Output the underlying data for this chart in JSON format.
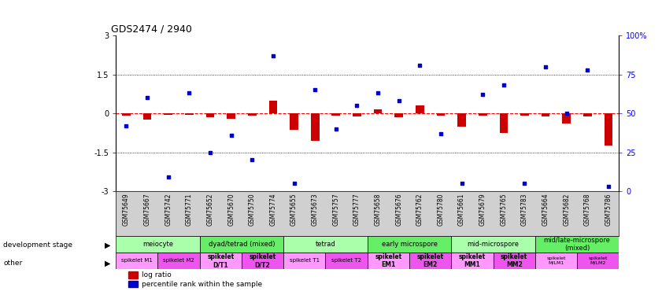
{
  "title": "GDS2474 / 2940",
  "samples": [
    "GSM75649",
    "GSM75667",
    "GSM75742",
    "GSM75771",
    "GSM75652",
    "GSM75670",
    "GSM75750",
    "GSM75774",
    "GSM75655",
    "GSM75673",
    "GSM75757",
    "GSM75777",
    "GSM75658",
    "GSM75676",
    "GSM75762",
    "GSM75780",
    "GSM75661",
    "GSM75679",
    "GSM75765",
    "GSM75783",
    "GSM75664",
    "GSM75682",
    "GSM75768",
    "GSM75786"
  ],
  "log_ratio": [
    -0.1,
    -0.25,
    -0.05,
    -0.05,
    -0.15,
    -0.2,
    -0.1,
    0.5,
    -0.65,
    -1.05,
    -0.1,
    -0.12,
    0.15,
    -0.15,
    0.3,
    -0.1,
    -0.5,
    -0.08,
    -0.75,
    -0.1,
    -0.12,
    -0.4,
    -0.12,
    -1.25
  ],
  "percentile": [
    42,
    60,
    9,
    63,
    25,
    36,
    20,
    87,
    5,
    65,
    40,
    55,
    63,
    58,
    81,
    37,
    5,
    62,
    68,
    5,
    80,
    50,
    78,
    3
  ],
  "ylim_left": [
    -3,
    3
  ],
  "ylim_right": [
    0,
    100
  ],
  "left_ticks": [
    -3,
    -1.5,
    0,
    1.5,
    3
  ],
  "right_ticks": [
    0,
    25,
    50,
    75,
    100
  ],
  "bar_color": "#cc0000",
  "dot_color": "#0000cc",
  "background_color": "#ffffff",
  "label_bg": "#d0d0d0",
  "groups": [
    {
      "label": "meiocyte",
      "start": 0,
      "end": 4,
      "color": "#aaffaa"
    },
    {
      "label": "dyad/tetrad (mixed)",
      "start": 4,
      "end": 8,
      "color": "#66ee66"
    },
    {
      "label": "tetrad",
      "start": 8,
      "end": 12,
      "color": "#aaffaa"
    },
    {
      "label": "early microspore",
      "start": 12,
      "end": 16,
      "color": "#66ee66"
    },
    {
      "label": "mid-microspore",
      "start": 16,
      "end": 20,
      "color": "#aaffaa"
    },
    {
      "label": "mid/late-microspore\n(mixed)",
      "start": 20,
      "end": 24,
      "color": "#66ee66"
    }
  ],
  "subgroups": [
    {
      "label": "spikelet M1",
      "start": 0,
      "end": 2,
      "color": "#ff99ff",
      "fontsize": 5.0,
      "bold": false
    },
    {
      "label": "spikelet M2",
      "start": 2,
      "end": 4,
      "color": "#ee55ee",
      "fontsize": 5.0,
      "bold": false
    },
    {
      "label": "spikelet\nD/T1",
      "start": 4,
      "end": 6,
      "color": "#ff99ff",
      "fontsize": 5.5,
      "bold": true
    },
    {
      "label": "spikelet\nD/T2",
      "start": 6,
      "end": 8,
      "color": "#ee55ee",
      "fontsize": 5.5,
      "bold": true
    },
    {
      "label": "spikelet T1",
      "start": 8,
      "end": 10,
      "color": "#ff99ff",
      "fontsize": 5.0,
      "bold": false
    },
    {
      "label": "spikelet T2",
      "start": 10,
      "end": 12,
      "color": "#ee55ee",
      "fontsize": 5.0,
      "bold": false
    },
    {
      "label": "spikelet\nEM1",
      "start": 12,
      "end": 14,
      "color": "#ff99ff",
      "fontsize": 5.5,
      "bold": true
    },
    {
      "label": "spikelet\nEM2",
      "start": 14,
      "end": 16,
      "color": "#ee55ee",
      "fontsize": 5.5,
      "bold": true
    },
    {
      "label": "spikelet\nMM1",
      "start": 16,
      "end": 18,
      "color": "#ff99ff",
      "fontsize": 5.5,
      "bold": true
    },
    {
      "label": "spikelet\nMM2",
      "start": 18,
      "end": 20,
      "color": "#ee55ee",
      "fontsize": 5.5,
      "bold": true
    },
    {
      "label": "spikelet\nM/LM1",
      "start": 20,
      "end": 22,
      "color": "#ff99ff",
      "fontsize": 4.5,
      "bold": false
    },
    {
      "label": "spikelet\nM/LM2",
      "start": 22,
      "end": 24,
      "color": "#ee55ee",
      "fontsize": 4.5,
      "bold": false
    }
  ],
  "n_samples": 24
}
